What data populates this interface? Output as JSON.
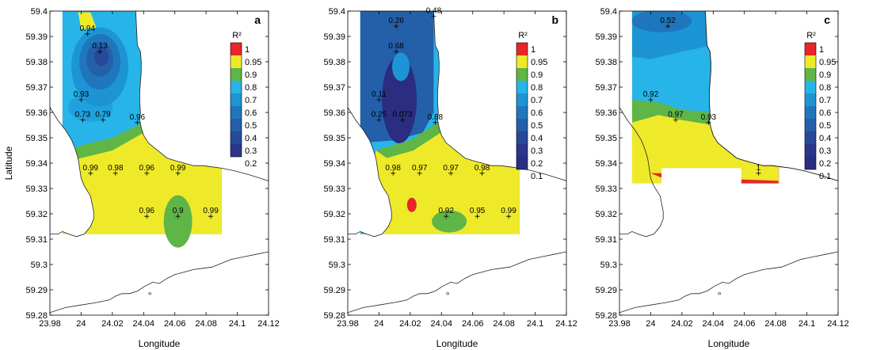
{
  "axes": {
    "xlabel": "Longitude",
    "ylabel": "Latitude",
    "xlim": [
      23.98,
      24.12
    ],
    "ylim": [
      59.28,
      59.4
    ],
    "xticks": [
      23.98,
      24,
      24.02,
      24.04,
      24.06,
      24.08,
      24.1,
      24.12
    ],
    "yticks": [
      59.28,
      59.29,
      59.3,
      59.31,
      59.32,
      59.33,
      59.34,
      59.35,
      59.36,
      59.37,
      59.38,
      59.39,
      59.4
    ],
    "xtick_labels": [
      "23.98",
      "24",
      "24.02",
      "24.04",
      "24.06",
      "24.08",
      "24.1",
      "24.12"
    ],
    "ytick_labels": [
      "59.28",
      "59.29",
      "59.3",
      "59.31",
      "59.32",
      "59.33",
      "59.34",
      "59.35",
      "59.36",
      "59.37",
      "59.38",
      "59.39",
      "59.4"
    ]
  },
  "panels": [
    {
      "label": "a",
      "cb_title": "R²",
      "cb_labels": [
        "1",
        "0.95",
        "0.9",
        "0.8",
        "0.7",
        "0.6",
        "0.5",
        "0.4",
        "0.3",
        "0.2"
      ],
      "cb_colors": [
        "#e8252a",
        "#eeea2a",
        "#5fb546",
        "#27b4e8",
        "#1d95d4",
        "#1f76bd",
        "#2360a9",
        "#28499a",
        "#29368b"
      ],
      "stations": [
        {
          "lon": 24.004,
          "lat": 59.391,
          "text": "0.94"
        },
        {
          "lon": 24.012,
          "lat": 59.384,
          "text": "0.13"
        },
        {
          "lon": 24.0,
          "lat": 59.365,
          "text": "0.93"
        },
        {
          "lon": 24.001,
          "lat": 59.357,
          "text": "0.73"
        },
        {
          "lon": 24.014,
          "lat": 59.357,
          "text": "0.79"
        },
        {
          "lon": 24.036,
          "lat": 59.356,
          "text": "0.96"
        },
        {
          "lon": 24.006,
          "lat": 59.336,
          "text": "0.99"
        },
        {
          "lon": 24.022,
          "lat": 59.336,
          "text": "0.98"
        },
        {
          "lon": 24.042,
          "lat": 59.336,
          "text": "0.96"
        },
        {
          "lon": 24.062,
          "lat": 59.336,
          "text": "0.99"
        },
        {
          "lon": 24.042,
          "lat": 59.319,
          "text": "0.96"
        },
        {
          "lon": 24.062,
          "lat": 59.319,
          "text": "0.9"
        },
        {
          "lon": 24.083,
          "lat": 59.319,
          "text": "0.99"
        }
      ]
    },
    {
      "label": "b",
      "cb_title": "R²",
      "cb_labels": [
        "1",
        "0.95",
        "0.9",
        "0.8",
        "0.7",
        "0.6",
        "0.5",
        "0.4",
        "0.3",
        "0.2",
        "0.1"
      ],
      "cb_colors": [
        "#e8252a",
        "#eeea2a",
        "#5fb546",
        "#27b4e8",
        "#1d95d4",
        "#1f76bd",
        "#2360a9",
        "#28499a",
        "#29368b",
        "#2a2d80"
      ],
      "stations": [
        {
          "lon": 24.011,
          "lat": 59.394,
          "text": "0.26"
        },
        {
          "lon": 24.035,
          "lat": 59.398,
          "text": "0.48"
        },
        {
          "lon": 24.011,
          "lat": 59.384,
          "text": "0.68"
        },
        {
          "lon": 24.0,
          "lat": 59.365,
          "text": "0.11"
        },
        {
          "lon": 24.0,
          "lat": 59.357,
          "text": "0.25"
        },
        {
          "lon": 24.015,
          "lat": 59.357,
          "text": "0.073"
        },
        {
          "lon": 24.036,
          "lat": 59.356,
          "text": "0.88"
        },
        {
          "lon": 24.009,
          "lat": 59.336,
          "text": "0.98"
        },
        {
          "lon": 24.026,
          "lat": 59.336,
          "text": "0.97"
        },
        {
          "lon": 24.046,
          "lat": 59.336,
          "text": "0.97"
        },
        {
          "lon": 24.066,
          "lat": 59.336,
          "text": "0.98"
        },
        {
          "lon": 24.043,
          "lat": 59.319,
          "text": "0.92"
        },
        {
          "lon": 24.063,
          "lat": 59.319,
          "text": "0.95"
        },
        {
          "lon": 24.083,
          "lat": 59.319,
          "text": "0.99"
        }
      ]
    },
    {
      "label": "c",
      "cb_title": "R²",
      "cb_labels": [
        "1",
        "0.95",
        "0.9",
        "0.8",
        "0.7",
        "0.6",
        "0.5",
        "0.4",
        "0.3",
        "0.2",
        "0.1"
      ],
      "cb_colors": [
        "#e8252a",
        "#eeea2a",
        "#5fb546",
        "#27b4e8",
        "#1d95d4",
        "#1f76bd",
        "#2360a9",
        "#28499a",
        "#29368b",
        "#2a2d80"
      ],
      "stations": [
        {
          "lon": 24.011,
          "lat": 59.394,
          "text": "0.52"
        },
        {
          "lon": 24.0,
          "lat": 59.365,
          "text": "0.92"
        },
        {
          "lon": 24.016,
          "lat": 59.357,
          "text": "0.97"
        },
        {
          "lon": 24.037,
          "lat": 59.356,
          "text": "0.93"
        },
        {
          "lon": 24.069,
          "lat": 59.336,
          "text": "1"
        }
      ]
    }
  ],
  "colors": {
    "land": "#ffffff",
    "coast": "#222222",
    "sea_blue": "#27b4e8",
    "sea_mid": "#5fb546",
    "yellow": "#eeea2a",
    "red": "#e8252a"
  }
}
